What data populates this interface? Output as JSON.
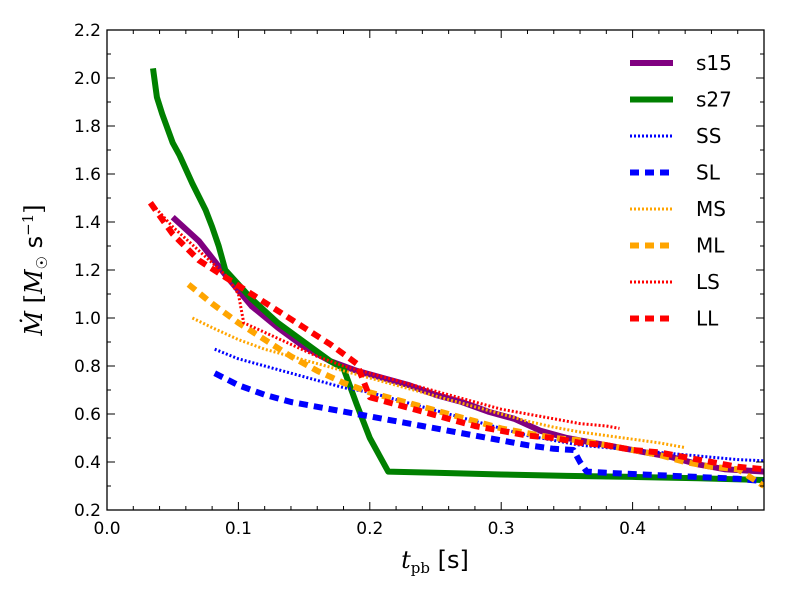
{
  "chart_data": {
    "type": "line",
    "xlabel": "t_pb [s]",
    "ylabel": "Ṁ [M☉ s⁻¹]",
    "xlim": [
      0.0,
      0.5
    ],
    "ylim": [
      0.2,
      2.2
    ],
    "xticks": [
      0.0,
      0.1,
      0.2,
      0.3,
      0.4
    ],
    "xtick_labels": [
      "0.0",
      "0.1",
      "0.2",
      "0.3",
      "0.4"
    ],
    "yticks": [
      0.2,
      0.4,
      0.6,
      0.8,
      1.0,
      1.2,
      1.4,
      1.6,
      1.8,
      2.0,
      2.2
    ],
    "ytick_labels": [
      "0.2",
      "0.4",
      "0.6",
      "0.8",
      "1.0",
      "1.2",
      "1.4",
      "1.6",
      "1.8",
      "2.0",
      "2.2"
    ],
    "legend_position": "top-right",
    "series": [
      {
        "name": "s15",
        "color": "#800080",
        "style": "solid",
        "width": 6,
        "x": [
          0.05,
          0.07,
          0.09,
          0.11,
          0.13,
          0.15,
          0.17,
          0.19,
          0.21,
          0.23,
          0.25,
          0.27,
          0.29,
          0.31,
          0.33,
          0.35,
          0.37,
          0.39,
          0.41,
          0.43,
          0.45,
          0.47,
          0.5
        ],
        "y": [
          1.42,
          1.32,
          1.18,
          1.05,
          0.96,
          0.88,
          0.82,
          0.78,
          0.75,
          0.72,
          0.68,
          0.65,
          0.61,
          0.58,
          0.53,
          0.5,
          0.48,
          0.46,
          0.44,
          0.42,
          0.39,
          0.37,
          0.36
        ]
      },
      {
        "name": "s27",
        "color": "#008000",
        "style": "solid",
        "width": 6,
        "x": [
          0.035,
          0.038,
          0.042,
          0.05,
          0.055,
          0.065,
          0.075,
          0.08,
          0.085,
          0.09,
          0.11,
          0.13,
          0.15,
          0.17,
          0.18,
          0.19,
          0.2,
          0.214,
          0.25,
          0.3,
          0.35,
          0.4,
          0.45,
          0.5
        ],
        "y": [
          2.04,
          1.92,
          1.85,
          1.73,
          1.68,
          1.56,
          1.45,
          1.38,
          1.3,
          1.2,
          1.08,
          0.98,
          0.9,
          0.82,
          0.79,
          0.64,
          0.5,
          0.36,
          0.355,
          0.348,
          0.342,
          0.338,
          0.332,
          0.325
        ]
      },
      {
        "name": "SS",
        "color": "#0000ff",
        "style": "dotted",
        "width": 3,
        "x": [
          0.082,
          0.1,
          0.12,
          0.14,
          0.16,
          0.18,
          0.2,
          0.22,
          0.24,
          0.26,
          0.28,
          0.3,
          0.32,
          0.34,
          0.36,
          0.38,
          0.4,
          0.42,
          0.44,
          0.46,
          0.48,
          0.5
        ],
        "y": [
          0.87,
          0.83,
          0.8,
          0.77,
          0.74,
          0.71,
          0.69,
          0.66,
          0.63,
          0.6,
          0.57,
          0.54,
          0.51,
          0.49,
          0.47,
          0.46,
          0.45,
          0.44,
          0.43,
          0.42,
          0.41,
          0.405
        ]
      },
      {
        "name": "SL",
        "color": "#0000ff",
        "style": "dashed",
        "width": 6,
        "x": [
          0.082,
          0.1,
          0.12,
          0.14,
          0.16,
          0.18,
          0.2,
          0.22,
          0.24,
          0.26,
          0.28,
          0.3,
          0.32,
          0.34,
          0.355,
          0.36,
          0.365,
          0.38,
          0.4,
          0.42,
          0.44,
          0.46,
          0.48,
          0.5
        ],
        "y": [
          0.77,
          0.72,
          0.68,
          0.65,
          0.63,
          0.61,
          0.59,
          0.57,
          0.55,
          0.53,
          0.51,
          0.49,
          0.47,
          0.455,
          0.45,
          0.4,
          0.36,
          0.355,
          0.35,
          0.345,
          0.34,
          0.335,
          0.33,
          0.32
        ]
      },
      {
        "name": "MS",
        "color": "#ffa500",
        "style": "dotted",
        "width": 3,
        "x": [
          0.065,
          0.08,
          0.1,
          0.12,
          0.14,
          0.16,
          0.18,
          0.2,
          0.22,
          0.24,
          0.26,
          0.28,
          0.3,
          0.32,
          0.34,
          0.36,
          0.38,
          0.4,
          0.42,
          0.44
        ],
        "y": [
          1.0,
          0.96,
          0.91,
          0.87,
          0.84,
          0.81,
          0.78,
          0.75,
          0.72,
          0.69,
          0.66,
          0.63,
          0.6,
          0.57,
          0.545,
          0.525,
          0.51,
          0.495,
          0.48,
          0.46
        ]
      },
      {
        "name": "ML",
        "color": "#ffa500",
        "style": "dashed",
        "width": 6,
        "x": [
          0.062,
          0.08,
          0.1,
          0.12,
          0.14,
          0.16,
          0.18,
          0.2,
          0.22,
          0.24,
          0.26,
          0.28,
          0.3,
          0.32,
          0.34,
          0.36,
          0.38,
          0.4,
          0.42,
          0.44,
          0.46,
          0.48,
          0.5
        ],
        "y": [
          1.14,
          1.06,
          0.98,
          0.91,
          0.84,
          0.78,
          0.73,
          0.69,
          0.66,
          0.63,
          0.6,
          0.57,
          0.54,
          0.52,
          0.5,
          0.49,
          0.47,
          0.45,
          0.43,
          0.4,
          0.38,
          0.37,
          0.3
        ]
      },
      {
        "name": "LS",
        "color": "#ff0000",
        "style": "dotted",
        "width": 3,
        "x": [
          0.035,
          0.05,
          0.07,
          0.09,
          0.1,
          0.104,
          0.12,
          0.14,
          0.16,
          0.18,
          0.2,
          0.22,
          0.24,
          0.26,
          0.28,
          0.3,
          0.32,
          0.34,
          0.36,
          0.38,
          0.39
        ],
        "y": [
          1.47,
          1.38,
          1.28,
          1.18,
          1.1,
          0.98,
          0.94,
          0.89,
          0.84,
          0.8,
          0.77,
          0.74,
          0.71,
          0.68,
          0.65,
          0.62,
          0.6,
          0.58,
          0.56,
          0.55,
          0.54
        ]
      },
      {
        "name": "LL",
        "color": "#ff0000",
        "style": "dashed",
        "width": 6,
        "x": [
          0.033,
          0.05,
          0.07,
          0.09,
          0.11,
          0.13,
          0.15,
          0.17,
          0.19,
          0.2,
          0.22,
          0.24,
          0.26,
          0.28,
          0.3,
          0.32,
          0.34,
          0.36,
          0.38,
          0.4,
          0.42,
          0.44,
          0.46,
          0.48,
          0.5
        ],
        "y": [
          1.48,
          1.35,
          1.24,
          1.17,
          1.1,
          1.03,
          0.96,
          0.89,
          0.81,
          0.67,
          0.64,
          0.61,
          0.58,
          0.55,
          0.53,
          0.51,
          0.5,
          0.48,
          0.47,
          0.45,
          0.44,
          0.42,
          0.4,
          0.38,
          0.37
        ]
      }
    ]
  }
}
